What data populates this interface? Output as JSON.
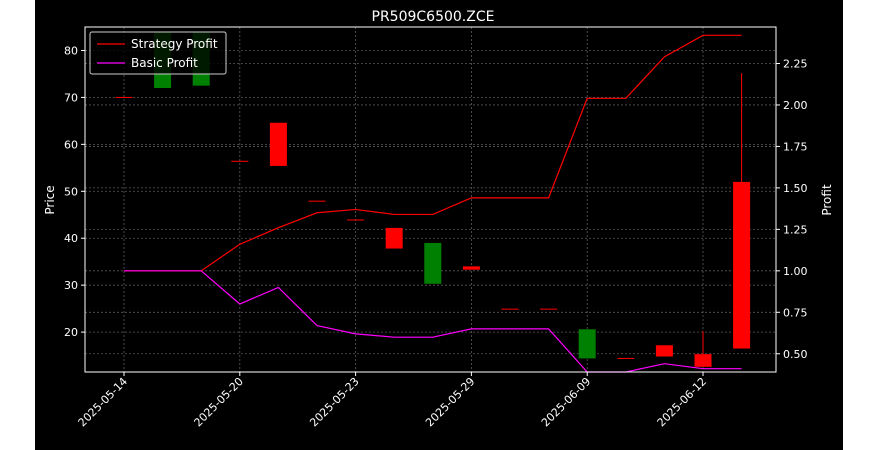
{
  "chart_data": {
    "type": "candlestick",
    "title": "PR509C6500.ZCE",
    "ylabel_left": "Price",
    "ylabel_right": "Profit",
    "grid": true,
    "legend_placement": "top-left",
    "background": "#000000",
    "colors": {
      "up": "#008000",
      "down": "#ff0000",
      "strategy": "#ff0000",
      "basic": "#ff00ff",
      "text": "#ffffff",
      "grid": "#808080"
    },
    "xticks": [
      "2025-05-14",
      "2025-05-20",
      "2025-05-23",
      "2025-05-29",
      "2025-06-09",
      "2025-06-12"
    ],
    "xtick_indices": [
      0,
      3,
      6,
      9,
      12,
      15
    ],
    "yticks_left": [
      20,
      30,
      40,
      50,
      60,
      70,
      80
    ],
    "ylim_left": [
      11.5,
      85
    ],
    "yticks_right": [
      0.5,
      0.75,
      1.0,
      1.25,
      1.5,
      1.75,
      2.0,
      2.25
    ],
    "yticks_right_labels": [
      "0.50",
      "0.75",
      "1.00",
      "1.25",
      "1.50",
      "1.75",
      "2.00",
      "2.25"
    ],
    "ylim_right": [
      0.39,
      2.47
    ],
    "candles": [
      {
        "open": 70.1,
        "close": 70.1,
        "high": 70.1,
        "low": 70.1,
        "color": "down"
      },
      {
        "open": 72.0,
        "close": 84.0,
        "high": 84.0,
        "low": 72.0,
        "color": "up"
      },
      {
        "open": 72.5,
        "close": 84.0,
        "high": 84.0,
        "low": 72.5,
        "color": "up"
      },
      {
        "open": 56.5,
        "close": 56.5,
        "high": 56.5,
        "low": 56.5,
        "color": "down"
      },
      {
        "open": 64.6,
        "close": 55.4,
        "high": 64.6,
        "low": 55.4,
        "color": "down"
      },
      {
        "open": 48.0,
        "close": 48.0,
        "high": 48.0,
        "low": 48.0,
        "color": "down"
      },
      {
        "open": 44.0,
        "close": 44.0,
        "high": 44.0,
        "low": 44.0,
        "color": "down"
      },
      {
        "open": 42.2,
        "close": 37.8,
        "high": 42.2,
        "low": 37.8,
        "color": "down"
      },
      {
        "open": 30.3,
        "close": 39.0,
        "high": 39.0,
        "low": 30.3,
        "color": "up"
      },
      {
        "open": 34.0,
        "close": 33.3,
        "high": 34.0,
        "low": 33.3,
        "color": "down"
      },
      {
        "open": 25.0,
        "close": 25.0,
        "high": 25.0,
        "low": 25.0,
        "color": "down"
      },
      {
        "open": 25.0,
        "close": 25.0,
        "high": 25.0,
        "low": 25.0,
        "color": "down"
      },
      {
        "open": 14.4,
        "close": 20.6,
        "high": 20.6,
        "low": 14.4,
        "color": "up"
      },
      {
        "open": 14.5,
        "close": 14.5,
        "high": 14.5,
        "low": 14.5,
        "color": "down"
      },
      {
        "open": 17.2,
        "close": 14.8,
        "high": 17.2,
        "low": 14.8,
        "color": "down"
      },
      {
        "open": 15.3,
        "close": 12.6,
        "high": 20.2,
        "low": 12.6,
        "color": "down"
      },
      {
        "open": 52.0,
        "close": 16.5,
        "high": 75.2,
        "low": 16.5,
        "color": "down"
      }
    ],
    "series": [
      {
        "name": "Strategy Profit",
        "color": "#ff0000",
        "values": [
          1.0,
          1.0,
          1.0,
          1.16,
          1.26,
          1.35,
          1.37,
          1.34,
          1.34,
          1.44,
          1.44,
          1.44,
          2.04,
          2.04,
          2.29,
          2.42,
          2.42
        ]
      },
      {
        "name": "Basic Profit",
        "color": "#ff00ff",
        "values": [
          1.0,
          1.0,
          1.0,
          0.8,
          0.9,
          0.67,
          0.62,
          0.6,
          0.6,
          0.65,
          0.65,
          0.65,
          0.39,
          0.39,
          0.44,
          0.41,
          0.41
        ]
      }
    ]
  }
}
